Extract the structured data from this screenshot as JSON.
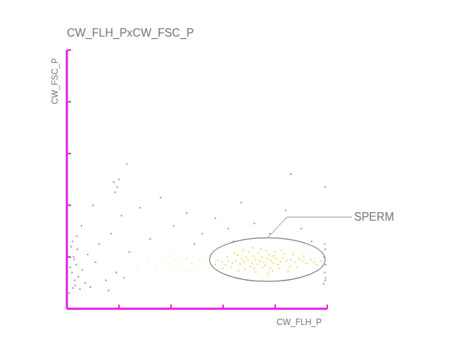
{
  "chart_data": {
    "type": "scatter",
    "title": "CW_FLH_PxCW_FSC_P",
    "x_label": "CW_FLH_P",
    "y_label": "CW_FSC_P",
    "xlim": [
      0,
      5
    ],
    "ylim": [
      0,
      5
    ],
    "xticks": [
      0,
      1,
      2,
      3,
      4,
      5
    ],
    "yticks": [
      0,
      1,
      2,
      3,
      4,
      5
    ],
    "tick_labels": false,
    "grid": false,
    "gates": [
      {
        "label": "SPERM",
        "cx": 3.85,
        "cy": 0.95,
        "rx": 1.11,
        "ry": 0.42
      }
    ],
    "series": [
      {
        "color": "#efe27a",
        "marker": "dot",
        "x": [
          3.7,
          3.62,
          3.78,
          3.85,
          3.55,
          3.92,
          3.48,
          3.66,
          3.74,
          3.81,
          3.59,
          3.95,
          4.02,
          3.4,
          3.33,
          3.88,
          4.1,
          3.52,
          3.68,
          4.15,
          3.25,
          3.44,
          3.97,
          4.05,
          3.76,
          3.6,
          4.22,
          3.18,
          3.35,
          3.9,
          4.3,
          3.1,
          4.38,
          3.05,
          4.45,
          3.28,
          4.18,
          3.5,
          3.83,
          4.08,
          3.42,
          4.52,
          2.98,
          4.6,
          3.15,
          4.28,
          3.72,
          4.0,
          3.3,
          3.95,
          4.68,
          2.9,
          4.75,
          4.35,
          3.22,
          4.8,
          3.63,
          4.12,
          3.08,
          4.55,
          2.85,
          4.88,
          4.42,
          3.0,
          3.57,
          3.87,
          4.25,
          3.38
        ],
        "values": [
          0.92,
          0.95,
          0.9,
          0.97,
          0.88,
          0.93,
          0.94,
          0.86,
          1.0,
          0.84,
          1.02,
          0.88,
          0.96,
          0.9,
          0.87,
          1.05,
          0.91,
          0.82,
          1.07,
          0.98,
          0.93,
          1.0,
          1.02,
          0.85,
          0.8,
          0.78,
          0.93,
          0.89,
          0.97,
          0.79,
          0.95,
          0.92,
          0.9,
          0.85,
          0.97,
          1.04,
          1.06,
          1.1,
          1.12,
          0.78,
          0.76,
          0.92,
          0.9,
          0.88,
          0.8,
          0.82,
          1.15,
          1.1,
          0.74,
          0.73,
          0.95,
          0.94,
          0.9,
          1.05,
          1.08,
          0.85,
          0.71,
          1.14,
          1.0,
          1.02,
          0.86,
          0.93,
          0.8,
          0.78,
          1.18,
          0.68,
          0.72,
          1.13
        ]
      },
      {
        "color": "#f6f1c4",
        "marker": "dot",
        "x": [
          1.35,
          1.55,
          1.7,
          1.85,
          2.0,
          2.1,
          2.2,
          2.3,
          2.4,
          2.5,
          2.55,
          2.65,
          2.72,
          2.78,
          1.95,
          2.35
        ],
        "values": [
          0.82,
          0.9,
          0.78,
          0.95,
          0.86,
          0.92,
          0.8,
          0.97,
          0.88,
          0.83,
          0.95,
          0.9,
          0.79,
          1.0,
          1.02,
          0.74
        ]
      },
      {
        "color": "#a8a8a8",
        "marker": "dot",
        "x": [
          0.12,
          0.15,
          0.1,
          0.18,
          0.13,
          0.2,
          0.11,
          0.16,
          0.22,
          0.14,
          0.25,
          0.19,
          0.35,
          0.3,
          0.4,
          0.28,
          0.45,
          0.55,
          0.62,
          0.75,
          0.85,
          0.95,
          1.0,
          0.9,
          0.97,
          0.93,
          1.05,
          1.2,
          1.4,
          1.6,
          1.8,
          2.05,
          2.3,
          2.6,
          2.85,
          3.1,
          3.35,
          3.6,
          3.9,
          4.2,
          4.3,
          4.5,
          4.7,
          0.8,
          1.1,
          2.45,
          3.2,
          4.96,
          4.95,
          4.97,
          4.94,
          4.96,
          4.95,
          4.97,
          4.93,
          4.96,
          1.15,
          0.5,
          0.05,
          0.08,
          0.06
        ],
        "values": [
          0.4,
          0.55,
          0.7,
          0.85,
          1.0,
          1.15,
          1.3,
          0.45,
          0.62,
          0.95,
          0.38,
          1.4,
          0.5,
          0.75,
          1.05,
          1.6,
          0.42,
          0.9,
          1.25,
          0.55,
          1.45,
          0.7,
          2.5,
          2.45,
          2.35,
          2.25,
          1.8,
          1.1,
          1.95,
          1.35,
          2.15,
          1.6,
          1.85,
          1.45,
          1.75,
          1.55,
          2.05,
          1.65,
          1.45,
          1.9,
          2.6,
          1.55,
          1.3,
          0.35,
          0.6,
          1.25,
          1.3,
          0.55,
          0.7,
          0.85,
          1.0,
          1.15,
          1.25,
          0.6,
          0.48,
          2.35,
          2.8,
          2.0,
          0.3,
          1.2,
          0.8
        ]
      }
    ]
  }
}
